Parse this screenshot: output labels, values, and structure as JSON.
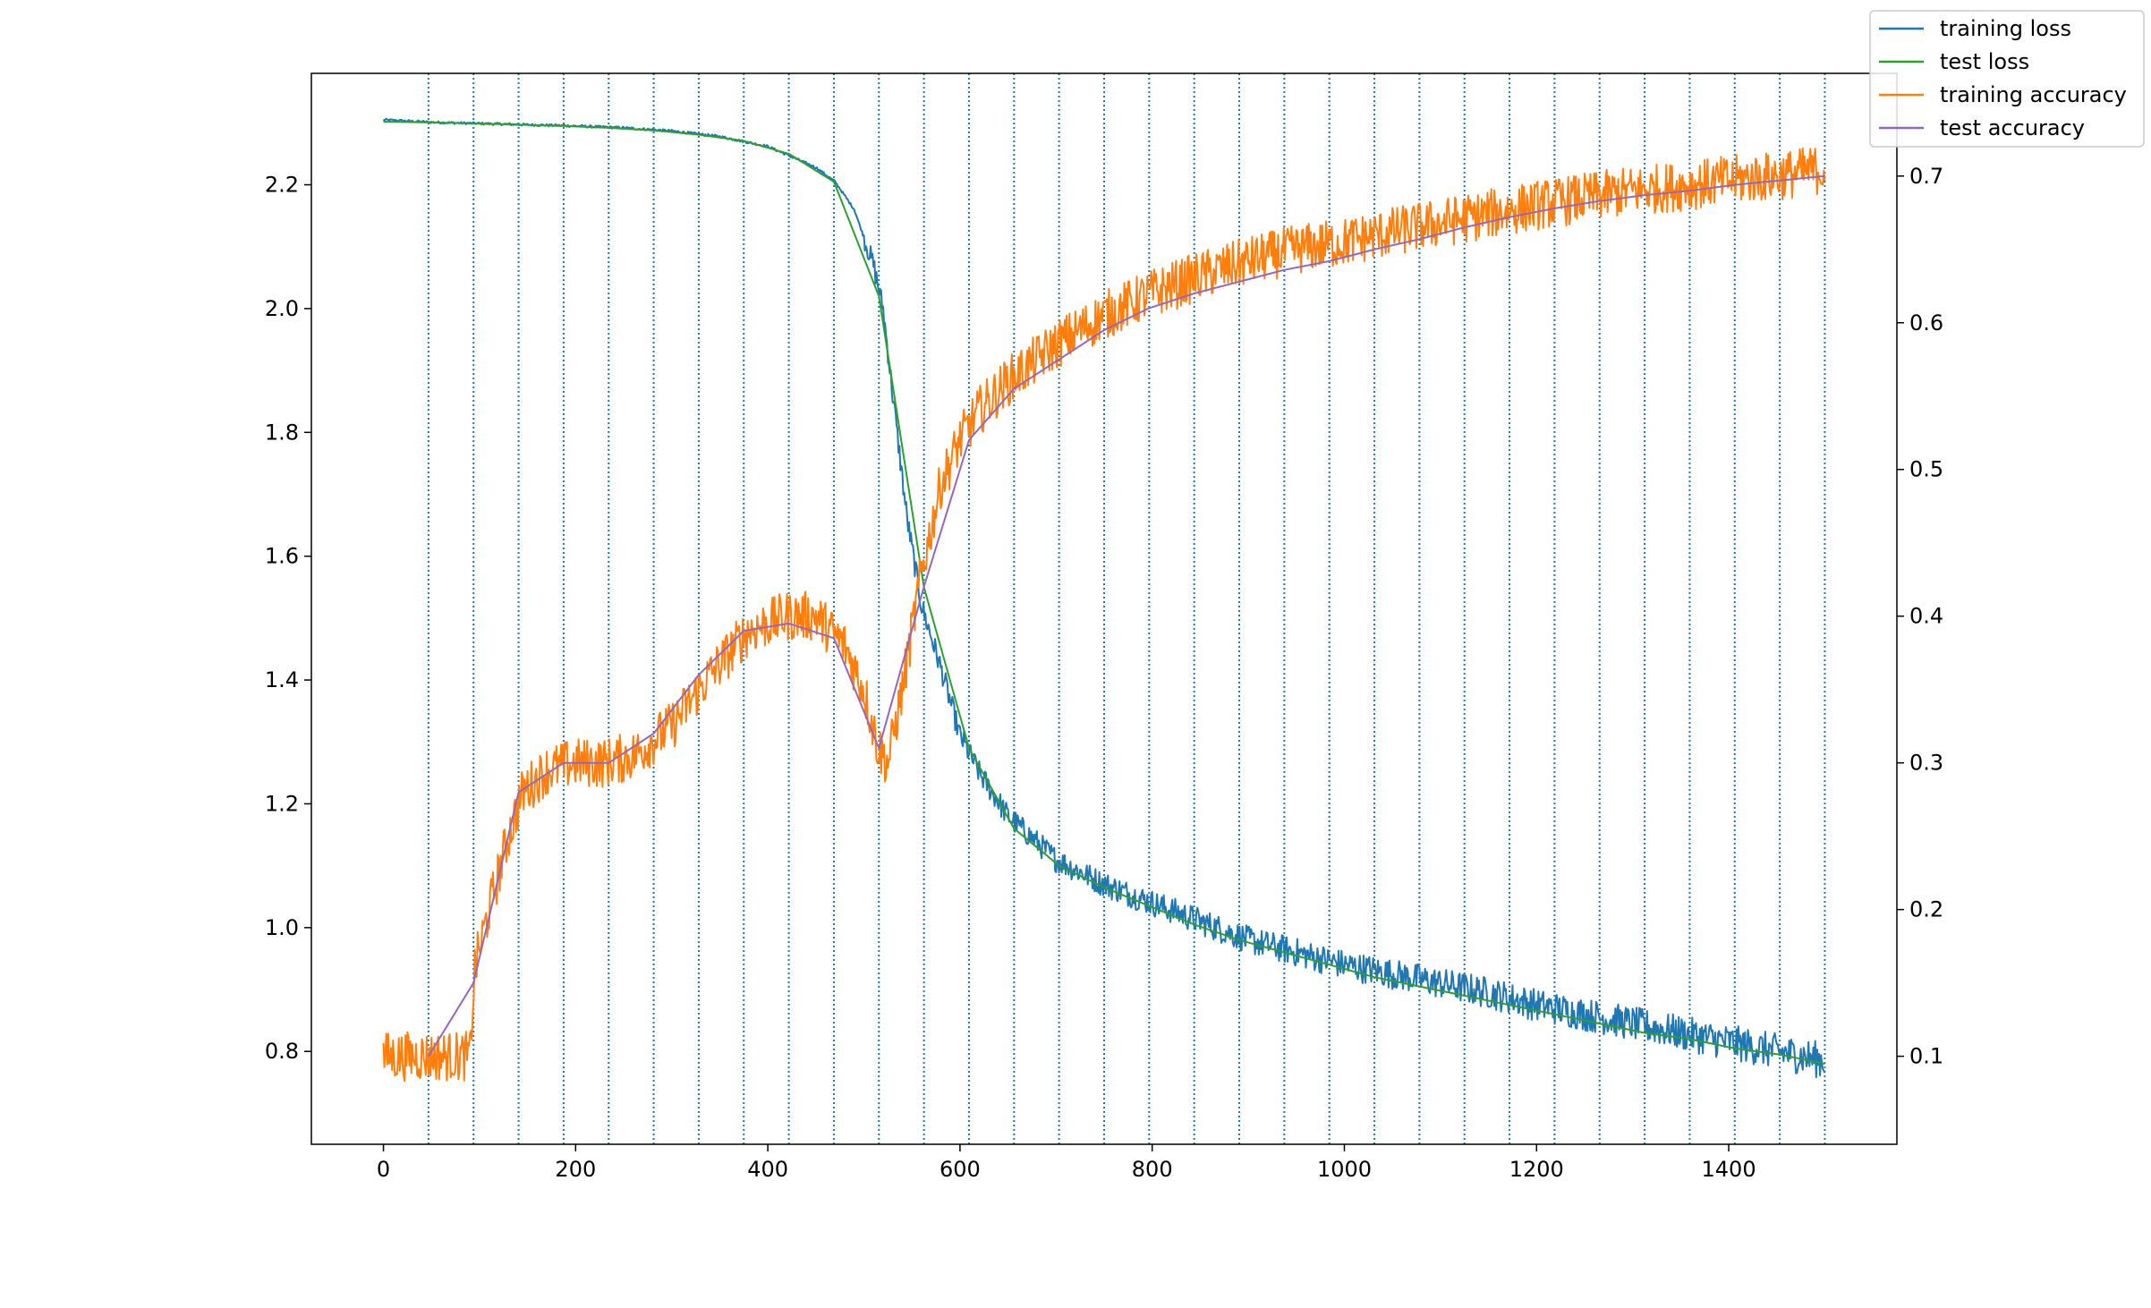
{
  "chart_data": {
    "type": "line",
    "title": "",
    "xlabel": "",
    "ylabel": "",
    "y2label": "",
    "xlim": [
      -75,
      1575
    ],
    "ylim": [
      0.65,
      2.38
    ],
    "y2lim": [
      0.04,
      0.77
    ],
    "grid": false,
    "legend_position": "top-right",
    "x_ticks": [
      0,
      200,
      400,
      600,
      800,
      1000,
      1200,
      1400
    ],
    "y_ticks": [
      0.8,
      1.0,
      1.2,
      1.4,
      1.6,
      1.8,
      2.0,
      2.2
    ],
    "y2_ticks": [
      0.1,
      0.2,
      0.3,
      0.4,
      0.5,
      0.6,
      0.7
    ],
    "epoch_boundaries": [
      46.875,
      93.75,
      140.625,
      187.5,
      234.375,
      281.25,
      328.125,
      375,
      421.875,
      468.75,
      515.625,
      562.5,
      609.375,
      656.25,
      703.125,
      750,
      796.875,
      843.75,
      890.625,
      937.5,
      984.375,
      1031.25,
      1078.125,
      1125,
      1171.875,
      1218.75,
      1265.625,
      1312.5,
      1359.375,
      1406.25,
      1453.125,
      1500
    ],
    "series": [
      {
        "name": "training loss",
        "axis": "left",
        "color": "#1f77b4",
        "x": [
          0,
          50,
          100,
          150,
          200,
          250,
          300,
          350,
          400,
          450,
          470,
          490,
          510,
          520,
          530,
          545,
          560,
          580,
          600,
          620,
          650,
          700,
          750,
          800,
          850,
          900,
          950,
          1000,
          1050,
          1100,
          1150,
          1200,
          1250,
          1300,
          1350,
          1400,
          1450,
          1500
        ],
        "values": [
          2.305,
          2.301,
          2.299,
          2.297,
          2.295,
          2.292,
          2.287,
          2.278,
          2.262,
          2.228,
          2.205,
          2.16,
          2.07,
          2.0,
          1.86,
          1.66,
          1.52,
          1.42,
          1.31,
          1.25,
          1.18,
          1.11,
          1.07,
          1.04,
          1.01,
          0.98,
          0.96,
          0.94,
          0.925,
          0.91,
          0.895,
          0.875,
          0.86,
          0.845,
          0.83,
          0.815,
          0.8,
          0.785
        ],
        "noise": 0.03
      },
      {
        "name": "test loss",
        "axis": "left",
        "color": "#2ca02c",
        "x": [
          0,
          46.875,
          93.75,
          140.625,
          187.5,
          234.375,
          281.25,
          328.125,
          375,
          421.875,
          468.75,
          515.625,
          562.5,
          609.375,
          656.25,
          703.125,
          750,
          796.875,
          843.75,
          890.625,
          937.5,
          984.375,
          1031.25,
          1078.125,
          1125,
          1171.875,
          1218.75,
          1265.625,
          1312.5,
          1359.375,
          1406.25,
          1453.125,
          1500
        ],
        "values": [
          2.302,
          2.301,
          2.299,
          2.297,
          2.295,
          2.292,
          2.288,
          2.281,
          2.271,
          2.25,
          2.205,
          2.02,
          1.55,
          1.29,
          1.16,
          1.1,
          1.065,
          1.035,
          1.005,
          0.98,
          0.96,
          0.94,
          0.92,
          0.905,
          0.89,
          0.875,
          0.86,
          0.845,
          0.83,
          0.82,
          0.805,
          0.795,
          0.78
        ]
      },
      {
        "name": "training accuracy",
        "axis": "right",
        "color": "#ff7f0e",
        "x": [
          0,
          50,
          90,
          95,
          110,
          130,
          145,
          170,
          200,
          230,
          260,
          300,
          340,
          380,
          420,
          450,
          480,
          500,
          515,
          525,
          540,
          560,
          580,
          600,
          620,
          650,
          700,
          750,
          800,
          850,
          900,
          950,
          1000,
          1050,
          1100,
          1150,
          1200,
          1250,
          1300,
          1350,
          1400,
          1450,
          1500
        ],
        "values": [
          0.1,
          0.1,
          0.1,
          0.16,
          0.2,
          0.25,
          0.28,
          0.295,
          0.3,
          0.3,
          0.305,
          0.325,
          0.36,
          0.39,
          0.4,
          0.4,
          0.38,
          0.35,
          0.31,
          0.3,
          0.35,
          0.43,
          0.49,
          0.52,
          0.54,
          0.56,
          0.585,
          0.605,
          0.62,
          0.632,
          0.642,
          0.65,
          0.655,
          0.662,
          0.668,
          0.674,
          0.68,
          0.685,
          0.69,
          0.693,
          0.697,
          0.7,
          0.705
        ],
        "noise": 0.017
      },
      {
        "name": "test accuracy",
        "axis": "right",
        "color": "#9467bd",
        "x": [
          46.875,
          93.75,
          140.625,
          187.5,
          234.375,
          281.25,
          328.125,
          375,
          421.875,
          468.75,
          515.625,
          562.5,
          609.375,
          656.25,
          703.125,
          750,
          796.875,
          843.75,
          890.625,
          937.5,
          984.375,
          1031.25,
          1078.125,
          1125,
          1171.875,
          1218.75,
          1265.625,
          1312.5,
          1359.375,
          1406.25,
          1453.125,
          1500
        ],
        "values": [
          0.1,
          0.15,
          0.28,
          0.3,
          0.3,
          0.32,
          0.36,
          0.39,
          0.395,
          0.385,
          0.31,
          0.42,
          0.52,
          0.555,
          0.575,
          0.595,
          0.61,
          0.62,
          0.628,
          0.636,
          0.642,
          0.65,
          0.657,
          0.665,
          0.672,
          0.678,
          0.683,
          0.687,
          0.69,
          0.694,
          0.697,
          0.7
        ]
      }
    ]
  }
}
